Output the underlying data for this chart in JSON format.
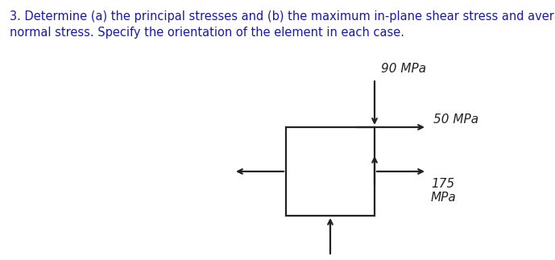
{
  "title_line1": "3. Determine (a) the principal stresses and (b) the maximum in-plane shear stress and average",
  "title_line2": "normal stress. Specify the orientation of the element in each case.",
  "title_fontsize": 10.5,
  "title_color": "#1a1aaa",
  "background_color": "#ffffff",
  "diagram_color": "#222222",
  "label_90MPa": "90 MPa",
  "label_50MPa": "50 MPa",
  "label_175MPa": "175\nMPa"
}
